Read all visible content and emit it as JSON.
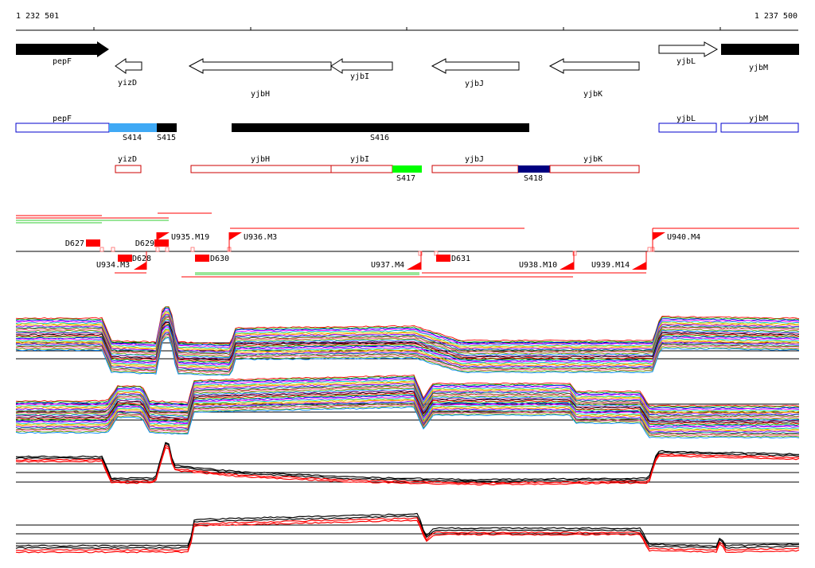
{
  "ruler": {
    "start_label": "1 232 501",
    "end_label": "1 237 500"
  },
  "genes": [
    {
      "name": "pepF",
      "strand": "+",
      "style": "filled"
    },
    {
      "name": "yizD",
      "strand": "-",
      "style": "outline"
    },
    {
      "name": "yjbH",
      "strand": "-",
      "style": "outline"
    },
    {
      "name": "yjbI",
      "strand": "-",
      "style": "outline"
    },
    {
      "name": "yjbJ",
      "strand": "-",
      "style": "outline"
    },
    {
      "name": "yjbK",
      "strand": "-",
      "style": "outline"
    },
    {
      "name": "yjbL",
      "strand": "+",
      "style": "outline"
    },
    {
      "name": "yjbM",
      "strand": "+",
      "style": "filled"
    }
  ],
  "transcripts_row1": {
    "genes": [
      "pepF",
      "yjbL",
      "yjbM"
    ],
    "segments": [
      {
        "label": "S414",
        "color": "#3fa9f5"
      },
      {
        "label": "S415",
        "color": "#000000"
      },
      {
        "label": "S416",
        "color": "#000000"
      }
    ]
  },
  "transcripts_row2": {
    "genes": [
      "yizD",
      "yjbH",
      "yjbI",
      "yjbJ",
      "yjbK"
    ],
    "segments": [
      {
        "label": "S417",
        "color": "#00ff00"
      },
      {
        "label": "S418",
        "color": "#000080"
      }
    ]
  },
  "upshifts": [
    "U935.M19",
    "U936.M3",
    "U940.M4",
    "U934.M3",
    "U937.M4",
    "U938.M10",
    "U939.M14"
  ],
  "downshifts": [
    "D627",
    "D629",
    "D628",
    "D630",
    "D631"
  ],
  "colors": {
    "gene_outline_plus": "#0000cc",
    "gene_outline_minus": "#cc0000",
    "shift_red": "#ff0000",
    "green_line": "#33cc33"
  },
  "expression_panels": [
    {
      "kind": "multi-condition-plus"
    },
    {
      "kind": "multi-condition-minus"
    },
    {
      "kind": "summary-plus"
    },
    {
      "kind": "summary-minus"
    }
  ]
}
